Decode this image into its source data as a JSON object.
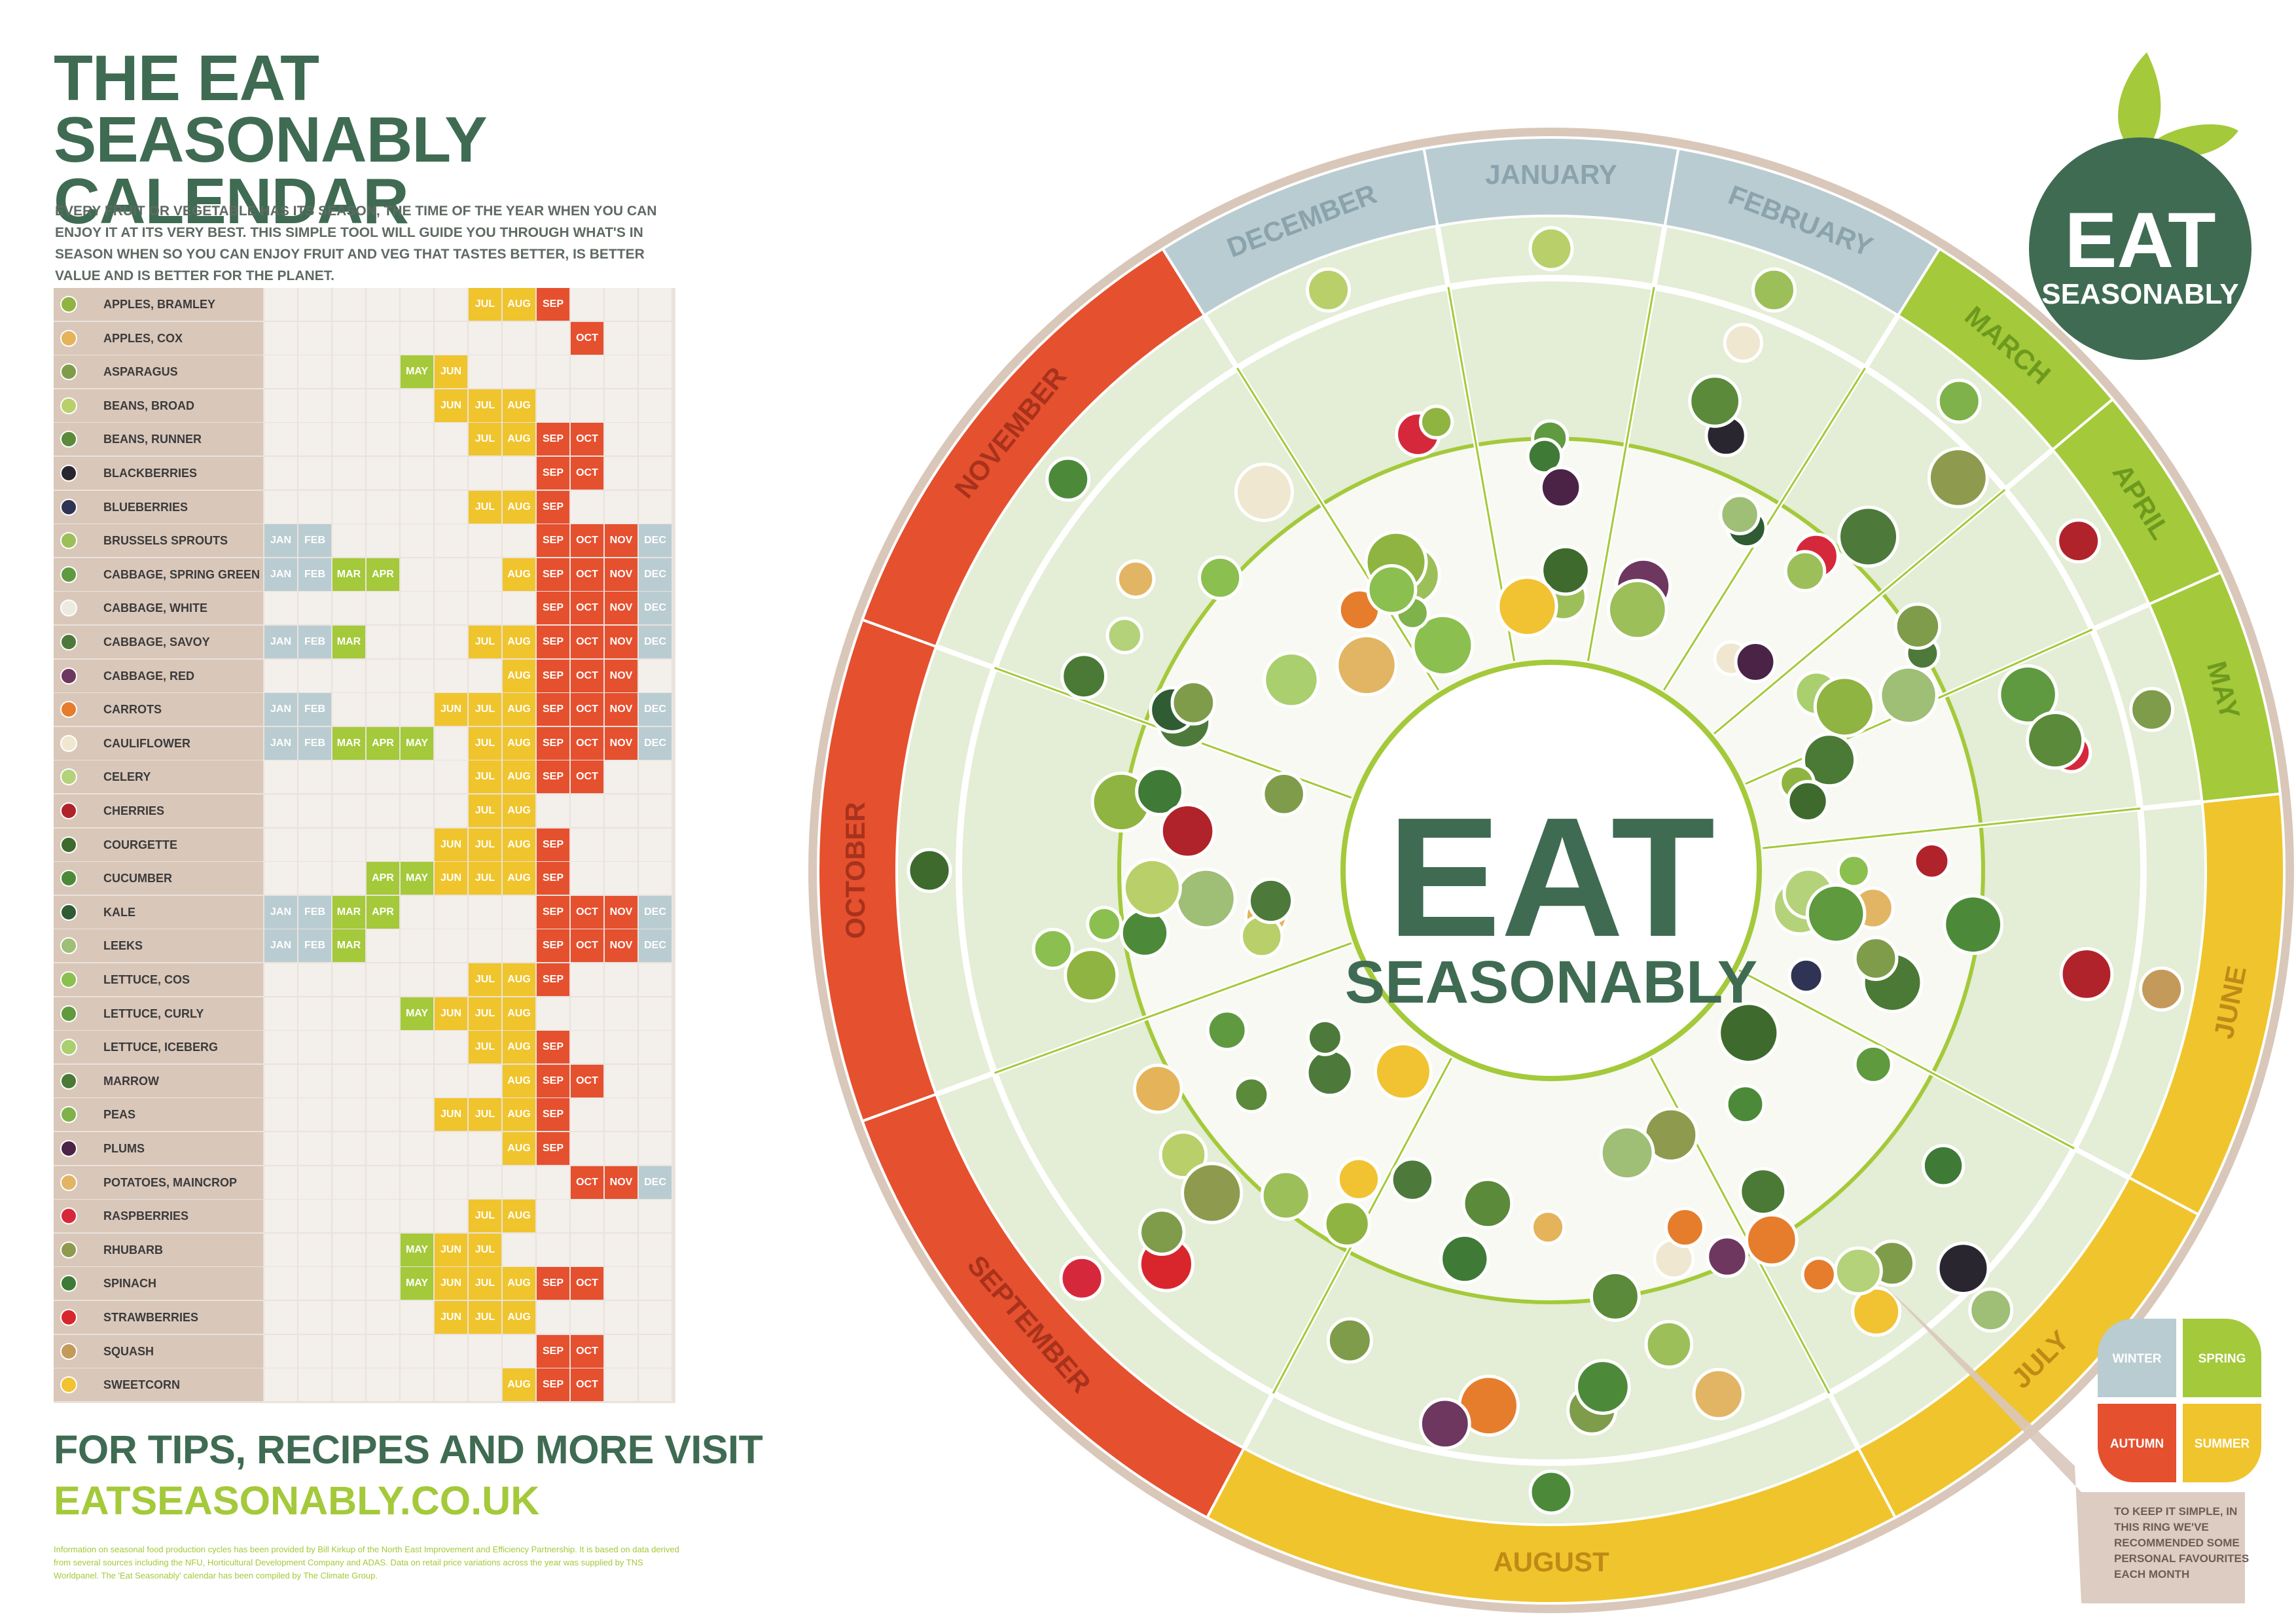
{
  "title": "THE EAT SEASONABLY CALENDAR",
  "intro": "EVERY FRUIT OR VEGETABLE HAS ITS SEASON, THE TIME OF THE YEAR WHEN YOU CAN ENJOY IT AT ITS VERY BEST. THIS SIMPLE TOOL WILL GUIDE YOU THROUGH WHAT'S IN SEASON WHEN SO YOU CAN ENJOY FRUIT AND VEG THAT TASTES BETTER, IS BETTER VALUE AND IS BETTER FOR THE PLANET.",
  "month_abbr": [
    "JAN",
    "FEB",
    "MAR",
    "APR",
    "MAY",
    "JUN",
    "JUL",
    "AUG",
    "SEP",
    "OCT",
    "NOV",
    "DEC"
  ],
  "season_colors": {
    "winter": "#b9ccd1",
    "spring": "#a4c93a",
    "summer": "#f0c42c",
    "autumn": "#e5502f"
  },
  "produce": [
    {
      "name": "APPLES, BRAMLEY",
      "months": [
        7,
        8,
        9
      ],
      "icon": "#8fb441"
    },
    {
      "name": "APPLES, COX",
      "months": [
        10
      ],
      "icon": "#e4b35a"
    },
    {
      "name": "ASPARAGUS",
      "months": [
        5,
        6
      ],
      "icon": "#7f9c4b"
    },
    {
      "name": "BEANS, BROAD",
      "months": [
        6,
        7,
        8
      ],
      "icon": "#b9cf6a"
    },
    {
      "name": "BEANS, RUNNER",
      "months": [
        7,
        8,
        9,
        10
      ],
      "icon": "#5b8a3a"
    },
    {
      "name": "BLACKBERRIES",
      "months": [
        9,
        10
      ],
      "icon": "#2a2630"
    },
    {
      "name": "BLUEBERRIES",
      "months": [
        7,
        8,
        9
      ],
      "icon": "#2f3454"
    },
    {
      "name": "BRUSSELS SPROUTS",
      "months": [
        1,
        2,
        9,
        10,
        11,
        12
      ],
      "icon": "#9cbf5a"
    },
    {
      "name": "CABBAGE, SPRING GREEN",
      "months": [
        1,
        2,
        3,
        4,
        8,
        9,
        10,
        11,
        12
      ],
      "icon": "#5f9a40"
    },
    {
      "name": "CABBAGE, WHITE",
      "months": [
        9,
        10,
        11,
        12
      ],
      "icon": "#ecebe0"
    },
    {
      "name": "CABBAGE, SAVOY",
      "months": [
        1,
        2,
        3,
        7,
        8,
        9,
        10,
        11,
        12
      ],
      "icon": "#4d7a3a"
    },
    {
      "name": "CABBAGE, RED",
      "months": [
        8,
        9,
        10,
        11
      ],
      "icon": "#6d3760"
    },
    {
      "name": "CARROTS",
      "months": [
        1,
        2,
        6,
        7,
        8,
        9,
        10,
        11,
        12
      ],
      "icon": "#e57d2c"
    },
    {
      "name": "CAULIFLOWER",
      "months": [
        1,
        2,
        3,
        4,
        5,
        7,
        8,
        9,
        10,
        11,
        12
      ],
      "icon": "#efe7cf"
    },
    {
      "name": "CELERY",
      "months": [
        7,
        8,
        9,
        10
      ],
      "icon": "#b4d27a"
    },
    {
      "name": "CHERRIES",
      "months": [
        7,
        8
      ],
      "icon": "#b0232b"
    },
    {
      "name": "COURGETTE",
      "months": [
        6,
        7,
        8,
        9
      ],
      "icon": "#3e6b2d"
    },
    {
      "name": "CUCUMBER",
      "months": [
        4,
        5,
        6,
        7,
        8,
        9
      ],
      "icon": "#4c8a3a"
    },
    {
      "name": "KALE",
      "months": [
        1,
        2,
        3,
        4,
        9,
        10,
        11,
        12
      ],
      "icon": "#2f5c33"
    },
    {
      "name": "LEEKS",
      "months": [
        1,
        2,
        3,
        9,
        10,
        11,
        12
      ],
      "icon": "#9fbe76"
    },
    {
      "name": "LETTUCE, COS",
      "months": [
        7,
        8,
        9
      ],
      "icon": "#8bbf4f"
    },
    {
      "name": "LETTUCE, CURLY",
      "months": [
        5,
        6,
        7,
        8
      ],
      "icon": "#5f9a3e"
    },
    {
      "name": "LETTUCE, ICEBERG",
      "months": [
        7,
        8,
        9
      ],
      "icon": "#a9cf6e"
    },
    {
      "name": "MARROW",
      "months": [
        8,
        9,
        10
      ],
      "icon": "#4a7a35"
    },
    {
      "name": "PEAS",
      "months": [
        6,
        7,
        8,
        9
      ],
      "icon": "#7fb24a"
    },
    {
      "name": "PLUMS",
      "months": [
        8,
        9
      ],
      "icon": "#4b2346"
    },
    {
      "name": "POTATOES, MAINCROP",
      "months": [
        10,
        11,
        12
      ],
      "icon": "#e2b564"
    },
    {
      "name": "RASPBERRIES",
      "months": [
        7,
        8
      ],
      "icon": "#d5293b"
    },
    {
      "name": "RHUBARB",
      "months": [
        5,
        6,
        7
      ],
      "icon": "#8e9a4e"
    },
    {
      "name": "SPINACH",
      "months": [
        5,
        6,
        7,
        8,
        9,
        10
      ],
      "icon": "#3f7a36"
    },
    {
      "name": "STRAWBERRIES",
      "months": [
        6,
        7,
        8
      ],
      "icon": "#d8262c"
    },
    {
      "name": "SQUASH",
      "months": [
        9,
        10
      ],
      "icon": "#c49a5a"
    },
    {
      "name": "SWEETCORN",
      "months": [
        8,
        9,
        10
      ],
      "icon": "#f1c232"
    }
  ],
  "tips": "FOR TIPS, RECIPES AND MORE VISIT",
  "url": "EATSEASONABLY.CO.UK",
  "footnote": "Information on seasonal food production cycles has been provided by Bill Kirkup of the North East Improvement and Efficiency Partnership. It is based on data derived from several sources including the NFU, Horticultural Development Company and ADAS. Data on retail price variations across the year was supplied by TNS Worldpanel. The 'Eat Seasonably' calendar has been compiled by The Climate Group.",
  "wheel_months": [
    "JANUARY",
    "FEBRUARY",
    "MARCH",
    "APRIL",
    "MAY",
    "JUNE",
    "JULY",
    "AUGUST",
    "SEPTEMBER",
    "OCTOBER",
    "NOVEMBER",
    "DECEMBER"
  ],
  "brand": {
    "line1": "EAT",
    "line2": "SEASONABLY"
  },
  "legend": {
    "winter": "WINTER",
    "spring": "SPRING",
    "autumn": "AUTUMN",
    "summer": "SUMMER"
  },
  "note": "TO KEEP IT SIMPLE, IN THIS RING WE'VE RECOMMENDED SOME PERSONAL FAVOURITES EACH MONTH"
}
